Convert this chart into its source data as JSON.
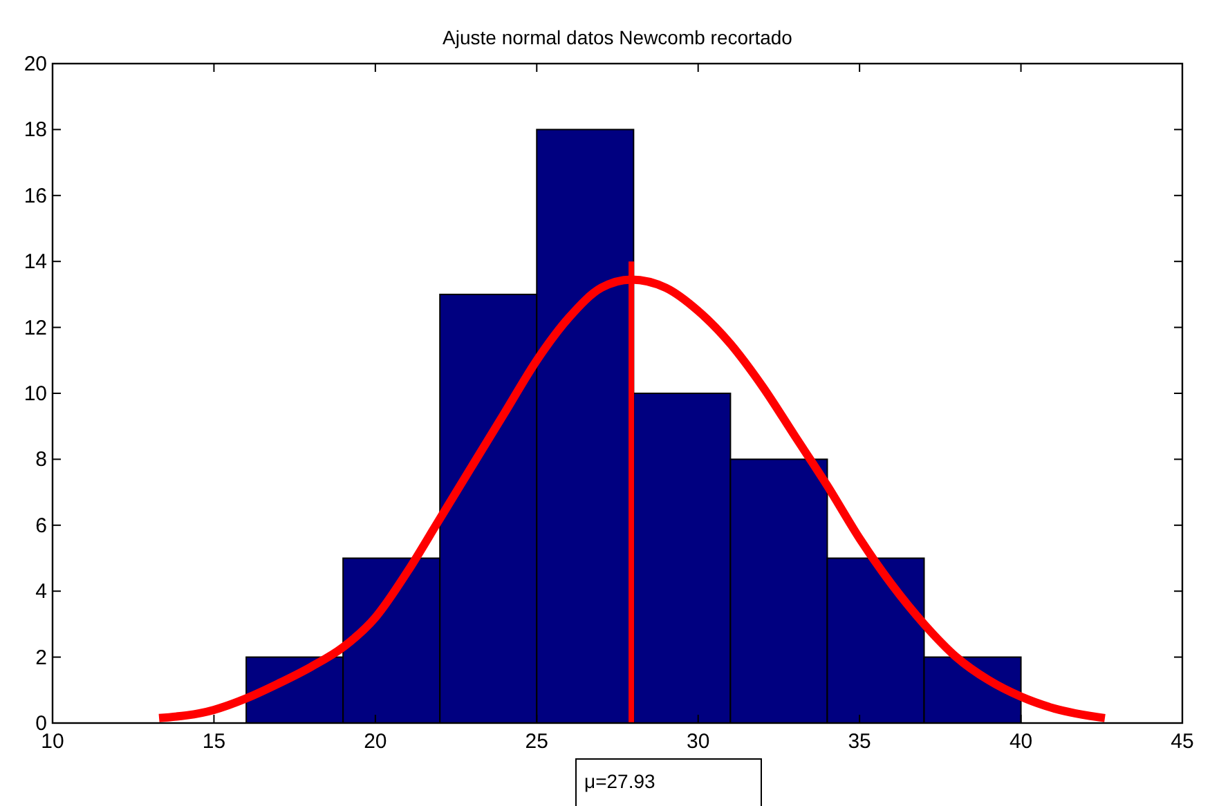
{
  "chart_data": {
    "type": "histogram",
    "title": "Ajuste normal datos Newcomb recortado",
    "bins": [
      16,
      19,
      22,
      25,
      28,
      31,
      34,
      37,
      40
    ],
    "values": [
      2,
      5,
      13,
      18,
      10,
      8,
      5,
      2
    ],
    "color": "#000080",
    "series": [
      {
        "type": "line",
        "color": "#ff0000",
        "x": [
          13.3,
          15,
          16,
          17,
          18,
          19,
          20,
          21,
          22,
          23,
          24,
          25,
          26,
          27,
          27.93,
          29,
          30,
          31,
          32,
          33,
          34,
          35,
          36,
          37,
          38,
          39,
          40,
          41,
          42.6
        ],
        "values": [
          0.15,
          0.4,
          0.75,
          1.2,
          1.7,
          2.3,
          3.2,
          4.6,
          6.2,
          7.8,
          9.4,
          11,
          12.3,
          13.2,
          13.45,
          13.2,
          12.5,
          11.5,
          10.2,
          8.7,
          7.2,
          5.6,
          4.2,
          3,
          2,
          1.3,
          0.8,
          0.45,
          0.15
        ]
      },
      {
        "type": "line",
        "color": "#ff0000",
        "x": [
          27.93,
          27.93
        ],
        "values": [
          0,
          14
        ]
      }
    ],
    "annotations": [
      "μ=27.93"
    ],
    "xlim": [
      10,
      45
    ],
    "xticks": [
      10,
      15,
      20,
      25,
      30,
      35,
      40,
      45
    ],
    "ylim": [
      0,
      20
    ],
    "yticks": [
      0,
      2,
      4,
      6,
      8,
      10,
      12,
      14,
      16,
      18,
      20
    ],
    "grid": false
  }
}
